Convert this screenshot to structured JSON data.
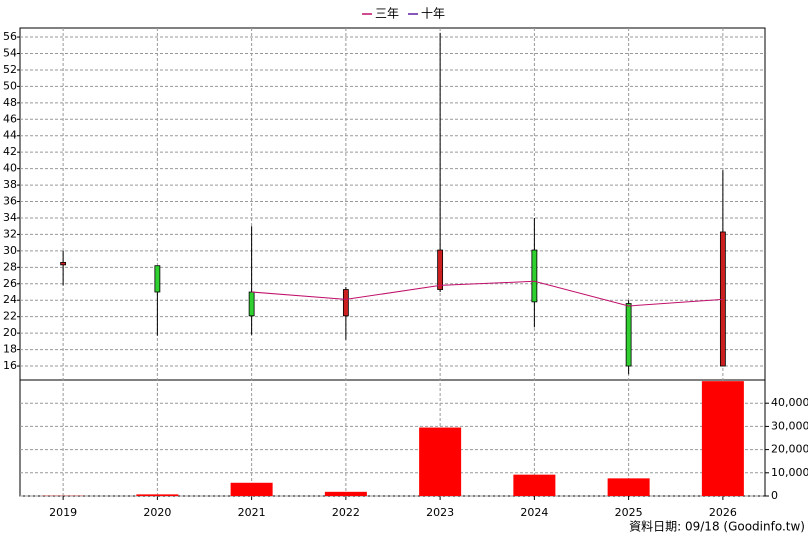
{
  "chart_data": {
    "type": "candlestick",
    "categories": [
      "2019",
      "2020",
      "2021",
      "2022",
      "2023",
      "2024",
      "2025",
      "2026"
    ],
    "open": [
      28.3,
      28.2,
      25.0,
      22.1,
      25.3,
      30.1,
      23.6,
      16.0
    ],
    "high": [
      30.0,
      28.2,
      33.0,
      25.6,
      56.5,
      34.0,
      24.0,
      39.8
    ],
    "low": [
      25.8,
      19.7,
      19.8,
      19.2,
      25.0,
      20.7,
      15.0,
      16.0
    ],
    "close": [
      28.6,
      25.0,
      22.1,
      25.3,
      30.1,
      23.8,
      16.0,
      32.3
    ],
    "up_color": "#cc2020",
    "down_color": "#30d030",
    "series": [
      {
        "name": "三年",
        "color": "#c0106a",
        "values": [
          null,
          null,
          25.0,
          24.1,
          25.8,
          26.3,
          23.3,
          24.1
        ]
      },
      {
        "name": "十年",
        "color": "#6020a0",
        "values": [
          null,
          null,
          null,
          null,
          null,
          null,
          null,
          null
        ]
      }
    ],
    "ylim": [
      14.3,
      57.1
    ],
    "yticks": [
      16,
      18,
      20,
      22,
      24,
      26,
      28,
      30,
      32,
      34,
      36,
      38,
      40,
      42,
      44,
      46,
      48,
      50,
      52,
      54,
      56
    ],
    "grid": true,
    "legend": "top",
    "volume": {
      "type": "bar",
      "color": "#ff0000",
      "values": [
        100,
        700,
        5700,
        1800,
        29500,
        9200,
        7600,
        49500
      ],
      "y2lim": [
        0,
        50000
      ],
      "y2ticks": [
        0,
        {
          "value": 10000,
          "label": "10,000"
        },
        {
          "value": 20000,
          "label": "20,000"
        },
        {
          "value": 30000,
          "label": "30,000"
        },
        {
          "value": 40000,
          "label": "40,000"
        }
      ]
    },
    "footer": "資料日期: 09/18 (Goodinfo.tw)"
  }
}
